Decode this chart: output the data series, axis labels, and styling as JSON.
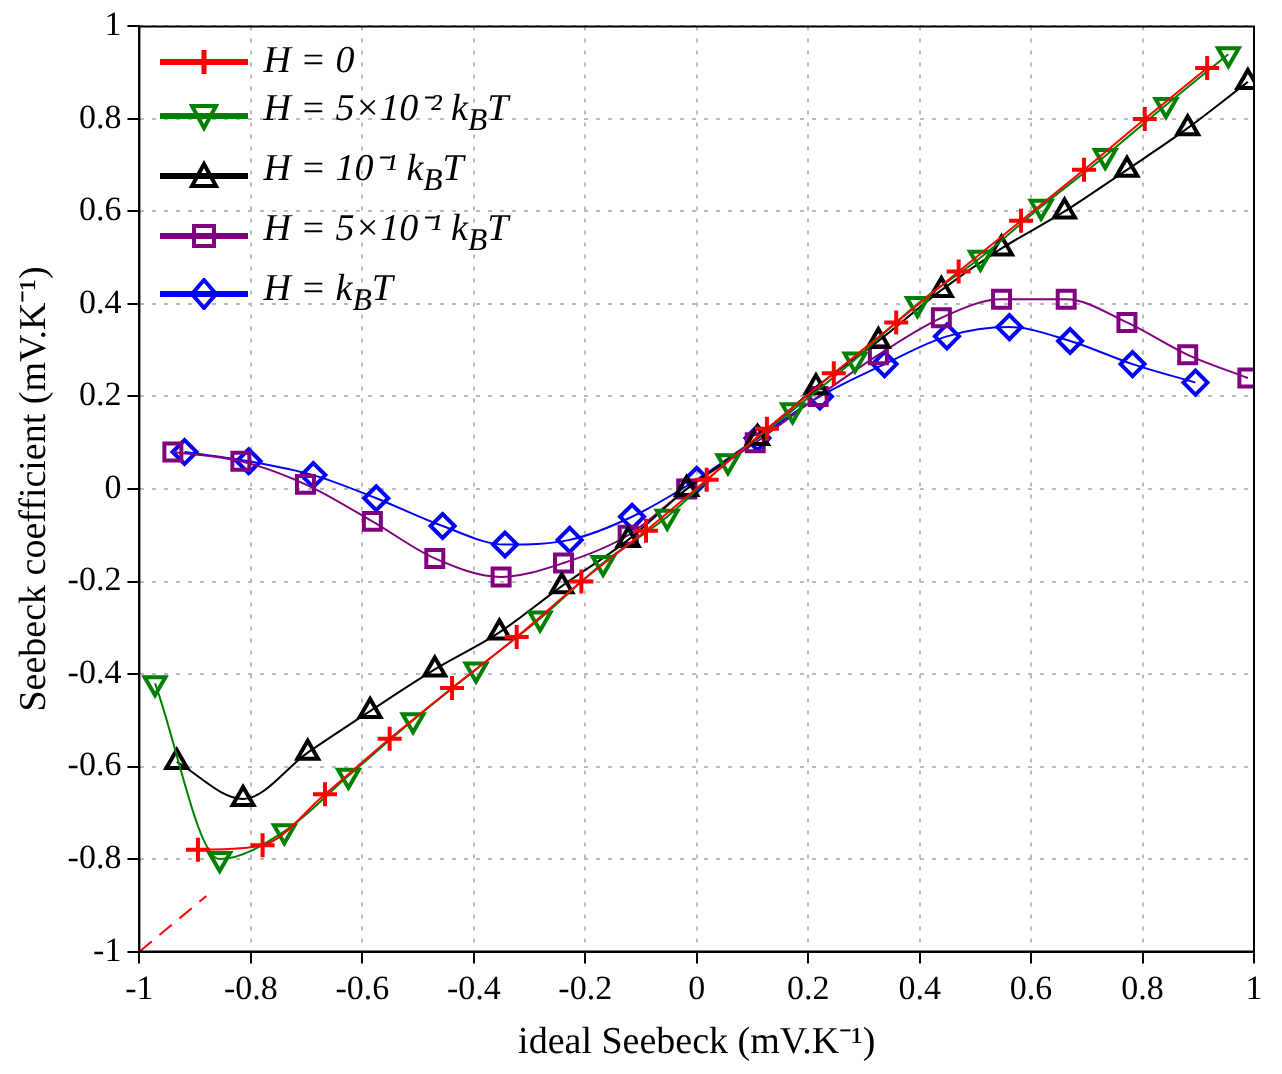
{
  "chart_data": {
    "type": "line",
    "xlabel": "ideal Seebeck (mV.K⁻¹)",
    "ylabel": "Seebeck coefficient (mV.K⁻¹)",
    "xlim": [
      -1,
      1
    ],
    "ylim": [
      -1,
      1
    ],
    "xticks": [
      -1,
      -0.8,
      -0.6,
      -0.4,
      -0.2,
      0,
      0.2,
      0.4,
      0.6,
      0.8,
      1
    ],
    "yticks": [
      -1,
      -0.8,
      -0.6,
      -0.4,
      -0.2,
      0,
      0.2,
      0.4,
      0.6,
      0.8,
      1
    ],
    "grid": true,
    "legend": "top left",
    "line_style": "solid",
    "series": [
      {
        "name": "H = 0",
        "color": "#ff0000",
        "marker": "cross",
        "x": [
          -0.895,
          -0.779,
          -0.667,
          -0.551,
          -0.439,
          -0.323,
          -0.207,
          -0.091,
          0.018,
          0.126,
          0.246,
          0.358,
          0.47,
          0.582,
          0.695,
          0.804,
          0.916
        ],
        "values": [
          -0.78,
          -0.77,
          -0.66,
          -0.54,
          -0.43,
          -0.32,
          -0.2,
          -0.09,
          0.02,
          0.13,
          0.25,
          0.36,
          0.47,
          0.58,
          0.69,
          0.8,
          0.91
        ]
      },
      {
        "color": "#ff0000",
        "marker": "none",
        "line_style": "dashed",
        "x": [
          -1,
          -0.88
        ],
        "values": [
          -1,
          -0.88
        ]
      },
      {
        "name": "H = 5×10⁻² k$_{B}$T",
        "color": "#008000",
        "marker": "triangle-down",
        "x": [
          -0.972,
          -0.856,
          -0.74,
          -0.625,
          -0.509,
          -0.396,
          -0.281,
          -0.168,
          -0.053,
          0.056,
          0.172,
          0.284,
          0.396,
          0.509,
          0.618,
          0.733,
          0.842,
          0.954
        ],
        "values": [
          -0.42,
          -0.8,
          -0.74,
          -0.62,
          -0.5,
          -0.39,
          -0.28,
          -0.16,
          -0.06,
          0.06,
          0.17,
          0.28,
          0.4,
          0.5,
          0.61,
          0.72,
          0.83,
          0.94
        ]
      },
      {
        "name": "H = 10⁻¹ k$_{B}$T",
        "color": "#000000",
        "marker": "triangle",
        "x": [
          -0.933,
          -0.814,
          -0.698,
          -0.586,
          -0.47,
          -0.354,
          -0.242,
          -0.123,
          -0.018,
          0.109,
          0.214,
          0.326,
          0.439,
          0.547,
          0.66,
          0.772,
          0.881,
          0.989
        ],
        "values": [
          -0.59,
          -0.67,
          -0.57,
          -0.48,
          -0.39,
          -0.31,
          -0.21,
          -0.11,
          0,
          0.11,
          0.22,
          0.32,
          0.43,
          0.52,
          0.6,
          0.69,
          0.78,
          0.88
        ]
      },
      {
        "name": "H = 5×10⁻¹ k$_{B}$T",
        "color": "#800080",
        "marker": "square",
        "x": [
          -0.94,
          -0.818,
          -0.702,
          -0.582,
          -0.47,
          -0.351,
          -0.239,
          -0.123,
          -0.018,
          0.105,
          0.218,
          0.326,
          0.439,
          0.547,
          0.663,
          0.772,
          0.881,
          0.989
        ],
        "values": [
          0.08,
          0.06,
          0.01,
          -0.07,
          -0.15,
          -0.19,
          -0.16,
          -0.1,
          0,
          0.1,
          0.2,
          0.29,
          0.37,
          0.41,
          0.41,
          0.36,
          0.29,
          0.24
        ]
      },
      {
        "name": "H = k$_{B}$T",
        "color": "#0000ff",
        "marker": "diamond",
        "x": [
          -0.919,
          -0.804,
          -0.688,
          -0.575,
          -0.456,
          -0.344,
          -0.228,
          -0.116,
          0,
          0.109,
          0.221,
          0.337,
          0.449,
          0.561,
          0.67,
          0.782,
          0.895
        ],
        "values": [
          0.08,
          0.06,
          0.03,
          -0.02,
          -0.08,
          -0.12,
          -0.11,
          -0.06,
          0.02,
          0.11,
          0.2,
          0.27,
          0.33,
          0.35,
          0.32,
          0.27,
          0.23
        ]
      }
    ]
  }
}
